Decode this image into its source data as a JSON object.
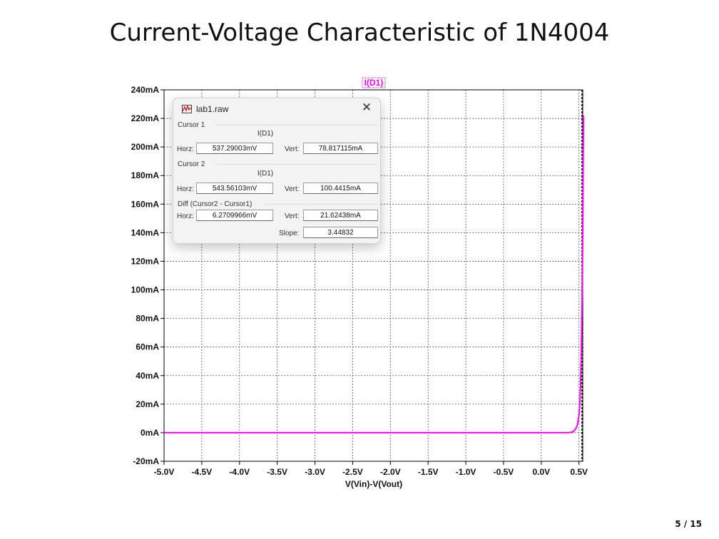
{
  "slide": {
    "title": "Current-Voltage Characteristic of 1N4004",
    "page": "5 / 15"
  },
  "chart_data": {
    "type": "line",
    "trace_label": "I(D1)",
    "xlabel": "V(Vin)-V(Vout)",
    "ylabel": "",
    "xlim": [
      -5.0,
      0.55
    ],
    "ylim": [
      -20,
      240
    ],
    "x_ticks": [
      -5.0,
      -4.5,
      -4.0,
      -3.5,
      -3.0,
      -2.5,
      -2.0,
      -1.5,
      -1.0,
      -0.5,
      0.0,
      0.5
    ],
    "x_tick_labels": [
      "-5.0V",
      "-4.5V",
      "-4.0V",
      "-3.5V",
      "-3.0V",
      "-2.5V",
      "-2.0V",
      "-1.5V",
      "-1.0V",
      "-0.5V",
      "0.0V",
      "0.5V"
    ],
    "y_ticks": [
      -20,
      0,
      20,
      40,
      60,
      80,
      100,
      120,
      140,
      160,
      180,
      200,
      220,
      240
    ],
    "y_tick_labels": [
      "-20mA",
      "0mA",
      "20mA",
      "40mA",
      "60mA",
      "80mA",
      "100mA",
      "120mA",
      "140mA",
      "160mA",
      "180mA",
      "200mA",
      "220mA",
      "240mA"
    ],
    "grid": true,
    "series": [
      {
        "name": "I(D1)",
        "color": "#ff00ff",
        "x": [
          -5.0,
          0.35,
          0.4,
          0.43,
          0.46,
          0.48,
          0.5,
          0.51,
          0.52,
          0.53,
          0.537,
          0.544,
          0.55,
          0.555,
          0.56
        ],
        "y": [
          0,
          0,
          0.3,
          1,
          3,
          6,
          12,
          20,
          32,
          55,
          78.8,
          100.4,
          140,
          180,
          222
        ]
      }
    ],
    "cursors_x": [
      0.53729003,
      0.54356103
    ]
  },
  "dialog": {
    "title": "lab1.raw",
    "cursor1": {
      "heading": "Cursor 1",
      "column": "I(D1)",
      "horz_label": "Horz:",
      "horz_value": "537.29003mV",
      "vert_label": "Vert:",
      "vert_value": "78.817115mA"
    },
    "cursor2": {
      "heading": "Cursor 2",
      "column": "I(D1)",
      "horz_label": "Horz:",
      "horz_value": "543.56103mV",
      "vert_label": "Vert:",
      "vert_value": "100.4415mA"
    },
    "diff": {
      "heading": "Diff (Cursor2 - Cursor1)",
      "horz_label": "Horz:",
      "horz_value": "6.2709966mV",
      "vert_label": "Vert:",
      "vert_value": "21.62438mA",
      "slope_label": "Slope:",
      "slope_value": "3.44832"
    },
    "icons": {
      "app": "waveform-app-icon",
      "close": "close-icon"
    }
  }
}
